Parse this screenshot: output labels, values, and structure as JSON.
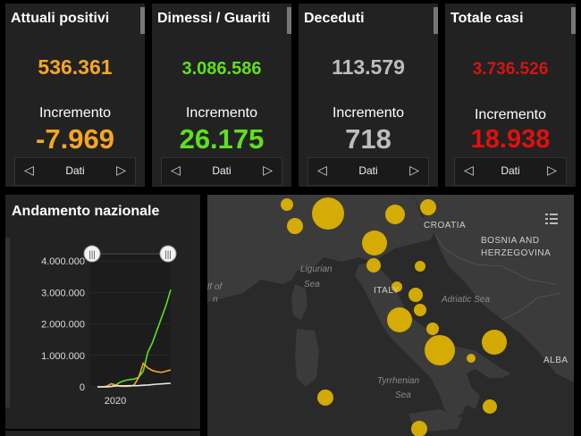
{
  "cards": [
    {
      "title": "Attuali positivi",
      "value": "536.361",
      "inc_label": "Incremento",
      "inc_value": "-7.969",
      "nav_label": "Dati",
      "value_color": "#f5a623",
      "inc_color": "#f5a623"
    },
    {
      "title": "Dimessi / Guariti",
      "value": "3.086.586",
      "inc_label": "Incremento",
      "inc_value": "26.175",
      "nav_label": "Dati",
      "value_color": "#5fe01f",
      "inc_color": "#5fe01f"
    },
    {
      "title": "Deceduti",
      "value": "113.579",
      "inc_label": "Incremento",
      "inc_value": "718",
      "nav_label": "Dati",
      "value_color": "#bdbdbd",
      "inc_color": "#bdbdbd"
    },
    {
      "title": "Totale casi",
      "value": "3.736.526",
      "inc_label": "Incremento",
      "inc_value": "18.938",
      "nav_label": "Dati",
      "value_color": "#d21515",
      "inc_color": "#e01010"
    }
  ],
  "chart": {
    "title": "Andamento nazionale"
  },
  "chart_data": {
    "type": "line",
    "title": "Andamento nazionale",
    "yticks": [
      "4.000.000",
      "3.000.000",
      "2.000.000",
      "1.000.000",
      "0"
    ],
    "ylim": [
      0,
      4000000
    ],
    "xlabel_tick": "2020",
    "series": [
      {
        "color": "#5fe01f",
        "values": [
          0,
          0,
          0,
          10000,
          60000,
          150000,
          200000,
          230000,
          250000,
          300000,
          500000,
          1100000,
          1400000,
          1800000,
          2200000,
          2600000,
          3086586
        ]
      },
      {
        "color": "#f5a623",
        "values": [
          0,
          0,
          20000,
          100000,
          60000,
          20000,
          15000,
          20000,
          50000,
          300000,
          750000,
          600000,
          520000,
          480000,
          460000,
          500000,
          536361
        ]
      },
      {
        "color": "#e8e8e8",
        "values": [
          0,
          0,
          0,
          10000,
          30000,
          35000,
          35000,
          36000,
          37000,
          40000,
          50000,
          60000,
          75000,
          85000,
          95000,
          105000,
          113579
        ]
      }
    ]
  },
  "map": {
    "labels": {
      "croatia": "CROATIA",
      "bosnia_1": "BOSNIA AND",
      "bosnia_2": "HERZEGOVINA",
      "ligurian_1": "Ligurian",
      "ligurian_2": "Sea",
      "gulf_1": "lf of",
      "gulf_2": "n",
      "italy": "ITALY",
      "adriatic": "Adriatic Sea",
      "tyrrhenian_1": "Tyrrhenian",
      "tyrrhenian_2": "Sea",
      "albania": "ALBA"
    }
  },
  "colors": {
    "panel": "#222222",
    "background": "#000000",
    "marker": "#e6b800"
  }
}
